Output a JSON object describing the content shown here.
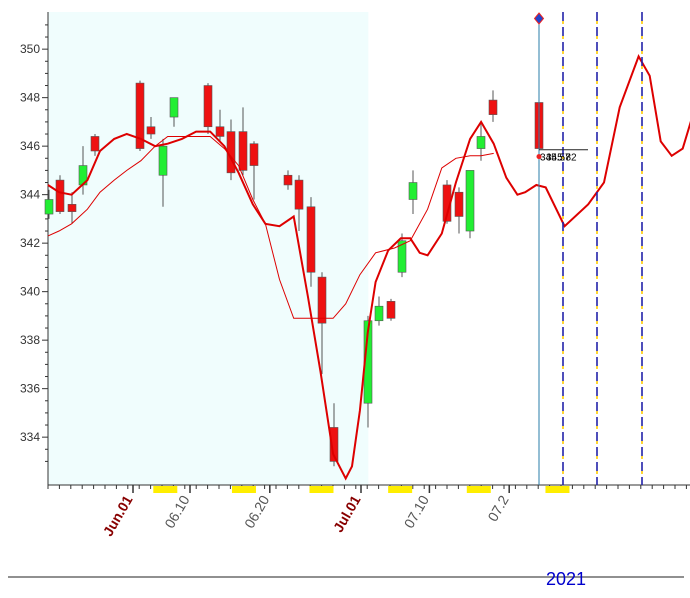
{
  "chart_data": {
    "type": "candlestick",
    "title": "",
    "xlabel": "",
    "ylabel": "",
    "ylim": [
      332.2,
      351.8
    ],
    "grid": false,
    "y_ticks": [
      334,
      336,
      338,
      340,
      342,
      344,
      346,
      348,
      350
    ],
    "x_tick_labels": [
      {
        "text": "Jun.01",
        "at": 5,
        "month_start": true
      },
      {
        "text": "06.10",
        "at": 10,
        "month_start": false
      },
      {
        "text": "06.20",
        "at": 17,
        "month_start": false
      },
      {
        "text": "Jul.01",
        "at": 25,
        "month_start": true
      },
      {
        "text": "07.10",
        "at": 31,
        "month_start": false
      },
      {
        "text": "07.2",
        "at": 38,
        "month_start": false
      }
    ],
    "year_label": "2021",
    "candles": [
      {
        "o": 343.2,
        "h": 344.2,
        "l": 343.0,
        "c": 343.8
      },
      {
        "o": 344.6,
        "h": 344.8,
        "l": 343.2,
        "c": 343.3
      },
      {
        "o": 343.6,
        "h": 344.1,
        "l": 342.8,
        "c": 343.3
      },
      {
        "o": 344.4,
        "h": 346.0,
        "l": 344.0,
        "c": 345.2
      },
      {
        "o": 346.4,
        "h": 346.5,
        "l": 345.6,
        "c": 345.8
      },
      {
        "o": 348.6,
        "h": 348.7,
        "l": 345.8,
        "c": 345.9
      },
      {
        "o": 346.8,
        "h": 347.2,
        "l": 346.3,
        "c": 346.5
      },
      {
        "o": 344.8,
        "h": 346.3,
        "l": 343.5,
        "c": 346.0
      },
      {
        "o": 347.2,
        "h": 348.0,
        "l": 346.8,
        "c": 348.0
      },
      {
        "o": 348.5,
        "h": 348.6,
        "l": 346.5,
        "c": 346.8
      },
      {
        "o": 346.8,
        "h": 347.5,
        "l": 346.2,
        "c": 346.4
      },
      {
        "o": 346.6,
        "h": 347.1,
        "l": 344.6,
        "c": 344.9
      },
      {
        "o": 346.6,
        "h": 347.6,
        "l": 344.8,
        "c": 345.0
      },
      {
        "o": 346.1,
        "h": 346.2,
        "l": 343.8,
        "c": 345.2
      },
      {
        "o": 344.8,
        "h": 345.0,
        "l": 344.2,
        "c": 344.4
      },
      {
        "o": 344.6,
        "h": 344.8,
        "l": 342.5,
        "c": 343.4
      },
      {
        "o": 343.5,
        "h": 343.9,
        "l": 340.2,
        "c": 340.8
      },
      {
        "o": 340.6,
        "h": 340.8,
        "l": 336.6,
        "c": 338.7
      },
      {
        "o": 334.4,
        "h": 335.4,
        "l": 332.8,
        "c": 333.0
      },
      {
        "o": 335.4,
        "h": 339.0,
        "l": 334.4,
        "c": 338.8
      },
      {
        "o": 338.8,
        "h": 339.8,
        "l": 338.6,
        "c": 339.4
      },
      {
        "o": 339.6,
        "h": 339.7,
        "l": 338.8,
        "c": 338.9
      },
      {
        "o": 340.8,
        "h": 342.4,
        "l": 340.6,
        "c": 342.1
      },
      {
        "o": 343.8,
        "h": 345.0,
        "l": 343.2,
        "c": 344.5
      },
      {
        "o": 344.4,
        "h": 344.6,
        "l": 342.8,
        "c": 342.9
      },
      {
        "o": 344.1,
        "h": 344.3,
        "l": 342.4,
        "c": 343.1
      },
      {
        "o": 342.5,
        "h": 345.0,
        "l": 342.2,
        "c": 345.0
      },
      {
        "o": 345.9,
        "h": 346.9,
        "l": 345.4,
        "c": 346.4
      },
      {
        "o": 347.9,
        "h": 348.3,
        "l": 347.0,
        "c": 347.3
      },
      {
        "o": 347.8,
        "h": 347.9,
        "l": 345.6,
        "c": 345.9
      }
    ],
    "ma_thick": [
      344.4,
      344.1,
      344.0,
      344.6,
      345.8,
      346.3,
      346.5,
      346.3,
      346.0,
      346.1,
      346.3,
      346.6,
      346.6,
      346.0,
      344.9,
      343.6,
      342.8,
      342.7,
      343.1,
      339.8,
      336.7,
      333.3,
      332.3,
      332.8,
      335.1,
      338.3,
      340.4,
      341.7,
      342.2,
      342.2,
      341.6,
      341.5,
      342.4,
      344.5,
      346.3,
      347.0,
      346.1,
      344.7,
      344.0,
      344.1,
      344.4,
      344.3,
      342.7,
      343.6,
      344.5,
      347.6,
      349.7,
      348.9,
      346.2,
      345.6,
      345.9,
      347.2
    ],
    "ma_thick_x": [
      0,
      0.7,
      1.5,
      2.5,
      3.3,
      4.2,
      5.0,
      5.9,
      6.8,
      7.6,
      8.5,
      9.4,
      10.3,
      11.2,
      12.1,
      13.0,
      13.8,
      14.7,
      15.6,
      16.5,
      17.3,
      18.1,
      18.9,
      19.3,
      19.8,
      20.3,
      20.8,
      21.6,
      22.4,
      23.0,
      23.6,
      24.1,
      25.0,
      25.9,
      26.8,
      27.5,
      28.3,
      29.1,
      29.8,
      30.3,
      31.0,
      31.6,
      32.8,
      34.3,
      35.3,
      36.3,
      37.5,
      38.2,
      38.9,
      39.6,
      40.3,
      40.9
    ],
    "ma_thin": [
      342.3,
      342.5,
      342.8,
      343.4,
      344.1,
      344.6,
      345.0,
      345.4,
      346.0,
      346.4,
      346.4,
      346.4,
      346.4,
      345.9,
      345.2,
      343.8,
      342.8,
      340.5,
      338.9,
      338.9,
      338.9,
      338.9,
      339.5,
      340.7,
      341.6,
      341.8,
      342.1,
      343.4,
      345.1,
      345.5,
      345.6,
      345.6,
      345.7
    ],
    "ma_thin_x": [
      0,
      0.7,
      1.5,
      2.5,
      3.3,
      4.2,
      5.0,
      5.9,
      6.8,
      7.6,
      8.5,
      9.4,
      10.3,
      11.2,
      12.1,
      13.0,
      13.8,
      14.7,
      15.6,
      16.5,
      17.3,
      18.1,
      18.9,
      19.8,
      20.8,
      22.0,
      23.0,
      24.1,
      25.0,
      25.9,
      26.8,
      27.5,
      28.3
    ],
    "last_values": [
      "345.57",
      "345.82"
    ],
    "forecast_markers_x": [
      29.5,
      31.4,
      34.1
    ],
    "current_marker_x": 28.1,
    "colors": {
      "up": "#22ee33",
      "down": "#ee1111",
      "candle_border": "#555555",
      "ma": "#dd0000",
      "plot_bg": "#f0fdfd",
      "axis": "#333333",
      "month_label": "#880000",
      "tick_label": "#555555",
      "forecast": "#2222aa",
      "forecast_dash": "#ffcc00",
      "weekend": "#ffee00",
      "cursor": "#2a7ca8",
      "marker": "#2244cc"
    }
  }
}
